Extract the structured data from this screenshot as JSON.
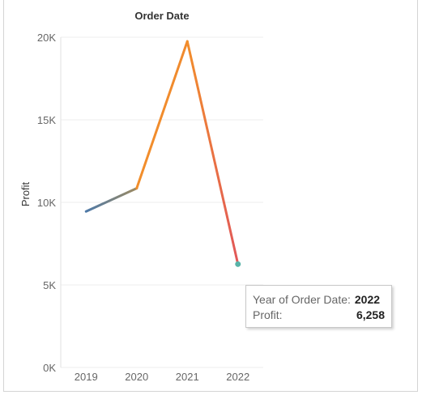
{
  "chart_data": {
    "type": "line",
    "title": "Order Date",
    "xlabel": "",
    "ylabel": "Profit",
    "categories": [
      "2019",
      "2020",
      "2021",
      "2022"
    ],
    "values": [
      9450,
      10850,
      19750,
      6258
    ],
    "ylim": [
      0,
      20000
    ],
    "yticks": [
      0,
      5000,
      10000,
      15000,
      20000
    ],
    "ytick_labels": [
      "0K",
      "5K",
      "10K",
      "15K",
      "20K"
    ],
    "grid": true,
    "segment_colors": [
      [
        "#4e79a7",
        "#9c8a62"
      ],
      [
        "#f28e2b",
        "#f08a2e"
      ],
      [
        "#f28e2b",
        "#e15759"
      ],
      [
        "#e15759",
        "#6bbcb1"
      ]
    ],
    "highlight_point": {
      "x": "2022",
      "y": 6258,
      "color": "#59b3a8"
    }
  },
  "tooltip": {
    "year_label": "Year of Order Date:",
    "year_value": "2022",
    "profit_label": "Profit:",
    "profit_value": "6,258"
  }
}
